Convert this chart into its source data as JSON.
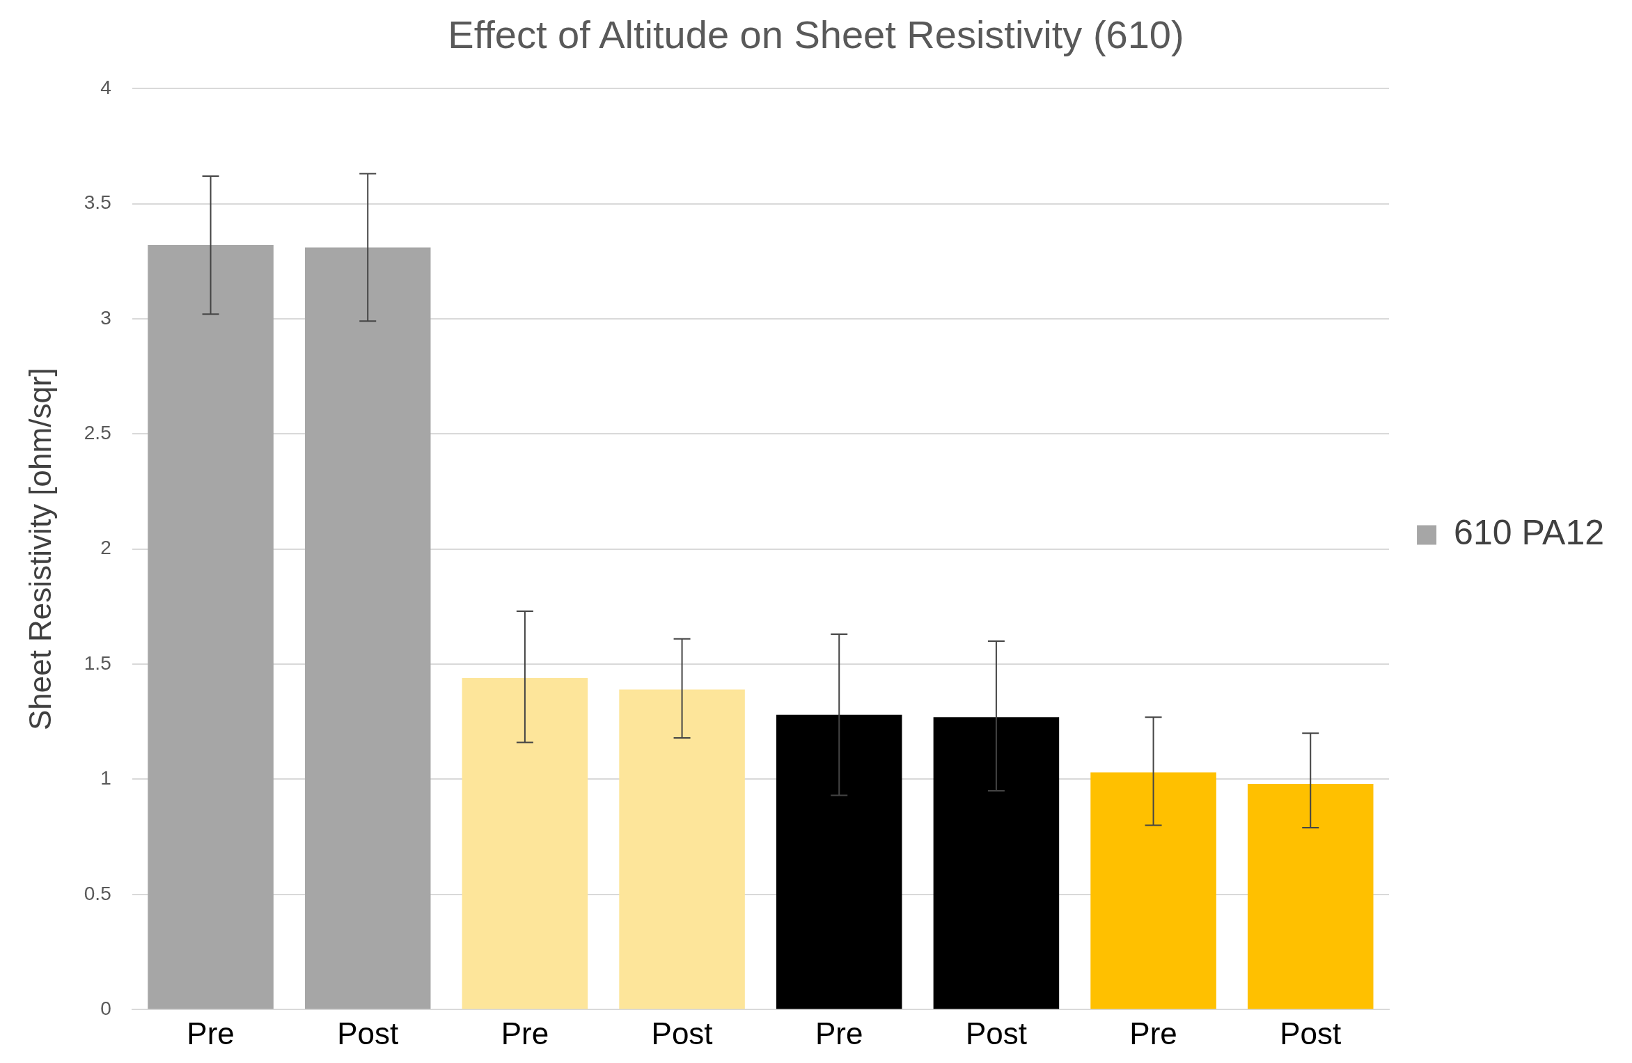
{
  "chart_data": {
    "type": "bar",
    "title": "Effect of Altitude on Sheet Resistivity (610)",
    "ylabel": "Sheet Resistivity [ohm/sqr]",
    "categories": [
      "Pre",
      "Post",
      "Pre",
      "Post",
      "Pre",
      "Post",
      "Pre",
      "Post"
    ],
    "series": [
      {
        "name": "610 PA12",
        "color": "#a6a6a6",
        "values": [
          3.32,
          3.31,
          null,
          null,
          null,
          null,
          null,
          null
        ],
        "errors": [
          [
            3.02,
            3.62
          ],
          [
            2.99,
            3.63
          ],
          null,
          null,
          null,
          null,
          null,
          null
        ]
      },
      {
        "color": "#fde59a",
        "values": [
          null,
          null,
          1.44,
          1.39,
          null,
          null,
          null,
          null
        ],
        "errors": [
          null,
          null,
          [
            1.16,
            1.73
          ],
          [
            1.18,
            1.61
          ],
          null,
          null,
          null,
          null
        ]
      },
      {
        "color": "#000000",
        "values": [
          null,
          null,
          null,
          null,
          1.28,
          1.27,
          null,
          null
        ],
        "errors": [
          null,
          null,
          null,
          null,
          [
            0.93,
            1.63
          ],
          [
            0.95,
            1.6
          ],
          null,
          null
        ]
      },
      {
        "color": "#ffc000",
        "values": [
          null,
          null,
          null,
          null,
          null,
          null,
          1.03,
          0.98
        ],
        "errors": [
          null,
          null,
          null,
          null,
          null,
          null,
          [
            0.8,
            1.27
          ],
          [
            0.79,
            1.2
          ]
        ]
      }
    ],
    "ylim": [
      0,
      4
    ],
    "yticks": [
      0,
      0.5,
      1,
      1.5,
      2,
      2.5,
      3,
      3.5,
      4
    ],
    "grid": "y",
    "legend": "right"
  }
}
